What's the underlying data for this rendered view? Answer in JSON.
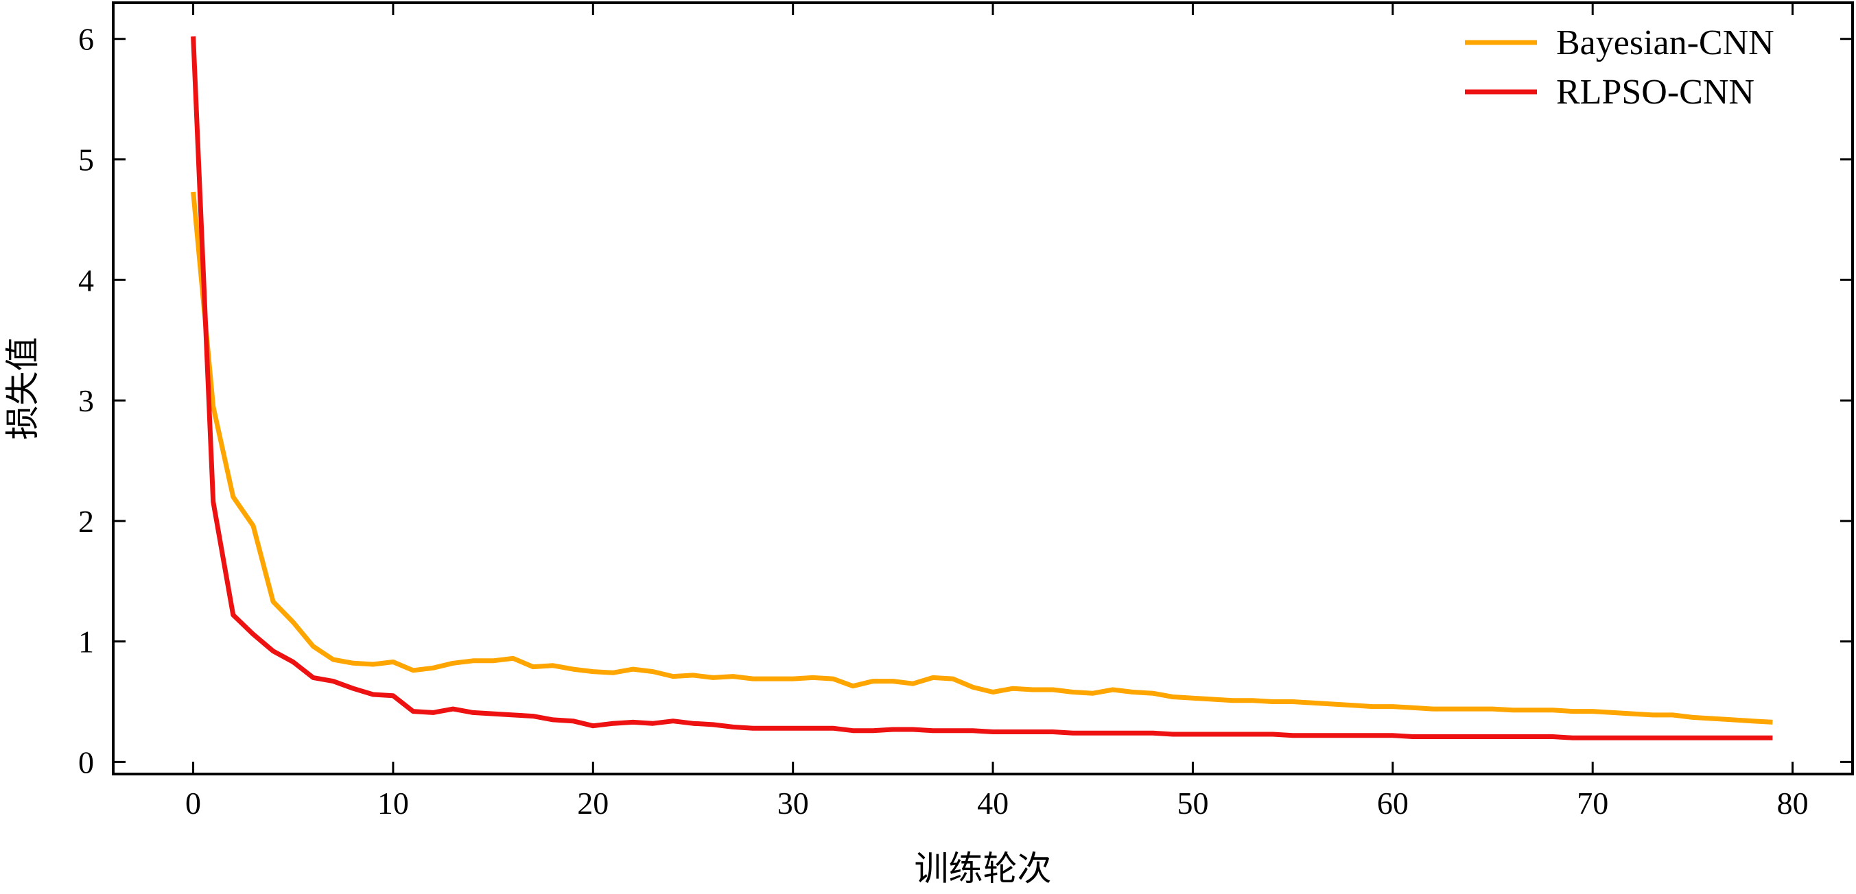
{
  "chart_data": {
    "type": "line",
    "title": "",
    "xlabel": "训练轮次",
    "ylabel": "损失值",
    "xlim": [
      -4,
      83
    ],
    "ylim": [
      -0.1,
      6.3
    ],
    "xticks": [
      0,
      10,
      20,
      30,
      40,
      50,
      60,
      70,
      80
    ],
    "yticks": [
      0,
      1,
      2,
      3,
      4,
      5,
      6
    ],
    "grid": false,
    "legend_position": "top-right",
    "colors": {
      "Bayesian-CNN": "#FFA500",
      "RLPSO-CNN": "#EE1111"
    },
    "x": [
      0,
      1,
      2,
      3,
      4,
      5,
      6,
      7,
      8,
      9,
      10,
      11,
      12,
      13,
      14,
      15,
      16,
      17,
      18,
      19,
      20,
      21,
      22,
      23,
      24,
      25,
      26,
      27,
      28,
      29,
      30,
      31,
      32,
      33,
      34,
      35,
      36,
      37,
      38,
      39,
      40,
      41,
      42,
      43,
      44,
      45,
      46,
      47,
      48,
      49,
      50,
      51,
      52,
      53,
      54,
      55,
      56,
      57,
      58,
      59,
      60,
      61,
      62,
      63,
      64,
      65,
      66,
      67,
      68,
      69,
      70,
      71,
      72,
      73,
      74,
      75,
      76,
      77,
      78,
      79
    ],
    "series": [
      {
        "name": "Bayesian-CNN",
        "values": [
          4.73,
          2.95,
          2.2,
          1.96,
          1.33,
          1.16,
          0.96,
          0.85,
          0.82,
          0.81,
          0.83,
          0.76,
          0.78,
          0.82,
          0.84,
          0.84,
          0.86,
          0.79,
          0.8,
          0.77,
          0.75,
          0.74,
          0.77,
          0.75,
          0.71,
          0.72,
          0.7,
          0.71,
          0.69,
          0.69,
          0.69,
          0.7,
          0.69,
          0.63,
          0.67,
          0.67,
          0.65,
          0.7,
          0.69,
          0.62,
          0.58,
          0.61,
          0.6,
          0.6,
          0.58,
          0.57,
          0.6,
          0.58,
          0.57,
          0.54,
          0.53,
          0.52,
          0.51,
          0.51,
          0.5,
          0.5,
          0.49,
          0.48,
          0.47,
          0.46,
          0.46,
          0.45,
          0.44,
          0.44,
          0.44,
          0.44,
          0.43,
          0.43,
          0.43,
          0.42,
          0.42,
          0.41,
          0.4,
          0.39,
          0.39,
          0.37,
          0.36,
          0.35,
          0.34,
          0.33
        ]
      },
      {
        "name": "RLPSO-CNN",
        "values": [
          6.02,
          2.16,
          1.22,
          1.06,
          0.92,
          0.83,
          0.7,
          0.67,
          0.61,
          0.56,
          0.55,
          0.42,
          0.41,
          0.44,
          0.41,
          0.4,
          0.39,
          0.38,
          0.35,
          0.34,
          0.3,
          0.32,
          0.33,
          0.32,
          0.34,
          0.32,
          0.31,
          0.29,
          0.28,
          0.28,
          0.28,
          0.28,
          0.28,
          0.26,
          0.26,
          0.27,
          0.27,
          0.26,
          0.26,
          0.26,
          0.25,
          0.25,
          0.25,
          0.25,
          0.24,
          0.24,
          0.24,
          0.24,
          0.24,
          0.23,
          0.23,
          0.23,
          0.23,
          0.23,
          0.23,
          0.22,
          0.22,
          0.22,
          0.22,
          0.22,
          0.22,
          0.21,
          0.21,
          0.21,
          0.21,
          0.21,
          0.21,
          0.21,
          0.21,
          0.2,
          0.2,
          0.2,
          0.2,
          0.2,
          0.2,
          0.2,
          0.2,
          0.2,
          0.2,
          0.2
        ]
      }
    ]
  }
}
